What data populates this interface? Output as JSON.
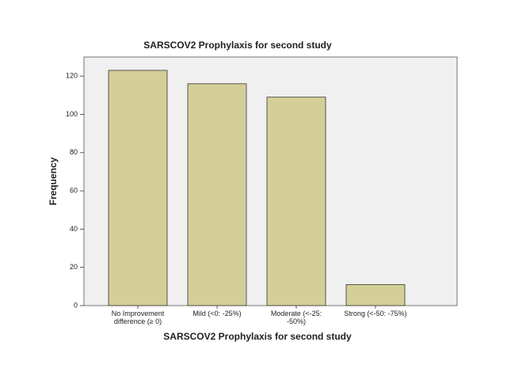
{
  "chart_data": {
    "type": "bar",
    "title": "SARSCOV2 Prophylaxis for second study",
    "x_label": "SARSCOV2 Prophylaxis for second study",
    "y_label": "Frequency",
    "categories": [
      "No Improvement difference (≥ 0)",
      "Mild (<0: -25%)",
      "Moderate (<-25: -50%)",
      "Strong (<-50: -75%)"
    ],
    "values": [
      123,
      116,
      109,
      11
    ],
    "color": "#d4cf98",
    "ylim": [
      0,
      130
    ],
    "yticks": [
      0,
      20,
      40,
      60,
      80,
      100,
      120
    ]
  }
}
